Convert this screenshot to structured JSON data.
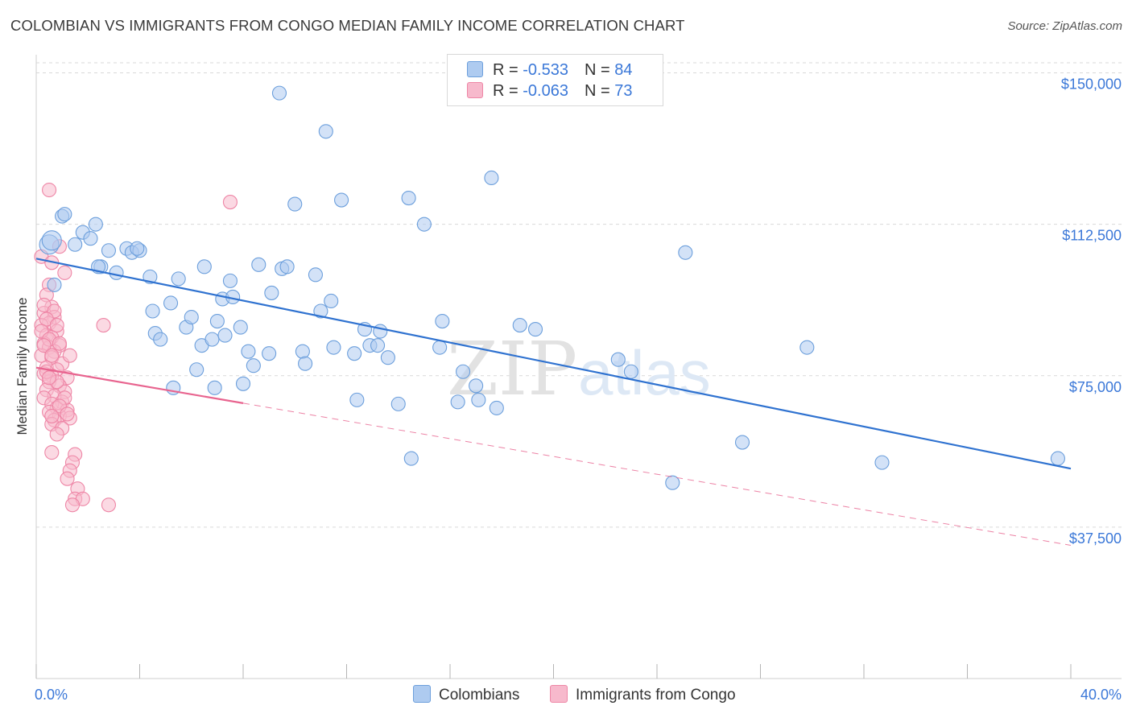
{
  "title": "COLOMBIAN VS IMMIGRANTS FROM CONGO MEDIAN FAMILY INCOME CORRELATION CHART",
  "source": "Source: ZipAtlas.com",
  "watermark": {
    "zip": "ZIP",
    "atlas": "atlas"
  },
  "legend": {
    "rows": [
      {
        "r_label": "R =",
        "r_value": "-0.533",
        "n_label": "N =",
        "n_value": "84"
      },
      {
        "r_label": "R =",
        "r_value": "-0.063",
        "n_label": "N =",
        "n_value": "73"
      }
    ]
  },
  "colors": {
    "blue_fill": "#aecbf0",
    "blue_stroke": "#6c9fdc",
    "blue_line": "#2f72d0",
    "pink_fill": "#f7b9cc",
    "pink_stroke": "#ee86a6",
    "pink_line": "#e8648f",
    "grid": "#d9d9d9",
    "axis_text": "#3b78d8"
  },
  "chart_data": {
    "type": "scatter",
    "xlabel": "",
    "ylabel": "Median Family Income",
    "xlim": [
      0,
      40
    ],
    "ylim": [
      0,
      152500
    ],
    "x_tick_labels": [
      "0.0%",
      "40.0%"
    ],
    "y_ticks": [
      {
        "value": 150000,
        "label": "$150,000"
      },
      {
        "value": 112500,
        "label": "$112,500"
      },
      {
        "value": 75000,
        "label": "$75,000"
      },
      {
        "value": 37500,
        "label": "$37,500"
      }
    ],
    "series": [
      {
        "name": "Colombians",
        "trend": {
          "x": [
            0,
            40
          ],
          "y": [
            104000,
            52000
          ],
          "dashed_from": null
        },
        "points": [
          [
            0.5,
            107500
          ],
          [
            0.6,
            108500
          ],
          [
            1.0,
            114500
          ],
          [
            1.1,
            115000
          ],
          [
            2.3,
            112500
          ],
          [
            1.5,
            107500
          ],
          [
            0.7,
            97500
          ],
          [
            1.8,
            110500
          ],
          [
            2.1,
            109000
          ],
          [
            2.8,
            106000
          ],
          [
            2.5,
            102000
          ],
          [
            3.1,
            100500
          ],
          [
            3.5,
            106500
          ],
          [
            3.7,
            105500
          ],
          [
            4.0,
            106000
          ],
          [
            4.4,
            99500
          ],
          [
            4.6,
            85500
          ],
          [
            4.8,
            84000
          ],
          [
            4.5,
            91000
          ],
          [
            5.2,
            93000
          ],
          [
            5.5,
            99000
          ],
          [
            5.3,
            72000
          ],
          [
            5.8,
            87000
          ],
          [
            6.0,
            89500
          ],
          [
            6.2,
            76500
          ],
          [
            6.4,
            82500
          ],
          [
            6.8,
            84000
          ],
          [
            7.0,
            88500
          ],
          [
            7.5,
            98500
          ],
          [
            7.9,
            87000
          ],
          [
            8.0,
            73000
          ],
          [
            8.2,
            81000
          ],
          [
            8.4,
            77500
          ],
          [
            7.2,
            94000
          ],
          [
            7.6,
            94500
          ],
          [
            9.0,
            80500
          ],
          [
            9.1,
            95500
          ],
          [
            9.5,
            101500
          ],
          [
            9.7,
            102000
          ],
          [
            9.4,
            145000
          ],
          [
            10.0,
            117500
          ],
          [
            10.3,
            81000
          ],
          [
            11.0,
            91000
          ],
          [
            11.4,
            93500
          ],
          [
            11.5,
            82000
          ],
          [
            11.8,
            118500
          ],
          [
            12.3,
            80500
          ],
          [
            12.4,
            69000
          ],
          [
            12.9,
            82500
          ],
          [
            13.3,
            86000
          ],
          [
            12.7,
            86500
          ],
          [
            13.2,
            82500
          ],
          [
            13.6,
            79500
          ],
          [
            14.0,
            68000
          ],
          [
            14.5,
            54500
          ],
          [
            14.4,
            119000
          ],
          [
            15.0,
            112500
          ],
          [
            15.7,
            88500
          ],
          [
            15.6,
            82000
          ],
          [
            16.3,
            68500
          ],
          [
            16.5,
            76000
          ],
          [
            17.0,
            72500
          ],
          [
            17.1,
            69000
          ],
          [
            17.8,
            67000
          ],
          [
            17.6,
            124000
          ],
          [
            18.7,
            87500
          ],
          [
            19.3,
            86500
          ],
          [
            22.5,
            79000
          ],
          [
            23.0,
            76000
          ],
          [
            24.6,
            48500
          ],
          [
            25.1,
            105500
          ],
          [
            27.3,
            58500
          ],
          [
            29.8,
            82000
          ],
          [
            32.7,
            53500
          ],
          [
            39.5,
            54500
          ],
          [
            11.2,
            135500
          ],
          [
            6.5,
            102000
          ],
          [
            8.6,
            102500
          ],
          [
            10.8,
            100000
          ],
          [
            10.4,
            78000
          ],
          [
            7.3,
            85000
          ],
          [
            6.9,
            72000
          ],
          [
            3.9,
            106500
          ],
          [
            2.4,
            102000
          ]
        ]
      },
      {
        "name": "Immigrants from Congo",
        "trend": {
          "x": [
            0,
            40
          ],
          "y": [
            77000,
            33000
          ],
          "dashed_from": 8
        },
        "points": [
          [
            0.2,
            104500
          ],
          [
            0.5,
            97500
          ],
          [
            0.4,
            95000
          ],
          [
            0.6,
            92000
          ],
          [
            0.3,
            90500
          ],
          [
            0.7,
            89500
          ],
          [
            0.5,
            88000
          ],
          [
            0.2,
            87500
          ],
          [
            0.8,
            86000
          ],
          [
            0.4,
            85000
          ],
          [
            0.6,
            84500
          ],
          [
            0.3,
            83000
          ],
          [
            0.9,
            82500
          ],
          [
            0.5,
            82000
          ],
          [
            0.7,
            81000
          ],
          [
            0.2,
            80000
          ],
          [
            0.6,
            79500
          ],
          [
            1.0,
            78000
          ],
          [
            0.4,
            77000
          ],
          [
            0.8,
            76500
          ],
          [
            0.3,
            75500
          ],
          [
            0.6,
            75000
          ],
          [
            1.2,
            74500
          ],
          [
            0.5,
            73500
          ],
          [
            0.9,
            72500
          ],
          [
            0.4,
            71500
          ],
          [
            1.1,
            71000
          ],
          [
            0.7,
            70000
          ],
          [
            0.3,
            69500
          ],
          [
            1.0,
            68500
          ],
          [
            0.6,
            68000
          ],
          [
            0.8,
            67000
          ],
          [
            1.2,
            66500
          ],
          [
            0.5,
            66000
          ],
          [
            0.9,
            65000
          ],
          [
            0.7,
            64000
          ],
          [
            1.3,
            64500
          ],
          [
            0.6,
            63000
          ],
          [
            1.0,
            62000
          ],
          [
            0.8,
            60500
          ],
          [
            1.5,
            55500
          ],
          [
            0.6,
            56000
          ],
          [
            1.4,
            53500
          ],
          [
            1.3,
            51500
          ],
          [
            1.2,
            49500
          ],
          [
            1.6,
            47000
          ],
          [
            1.5,
            44500
          ],
          [
            1.8,
            44500
          ],
          [
            2.8,
            43000
          ],
          [
            1.4,
            43000
          ],
          [
            0.5,
            121000
          ],
          [
            7.5,
            118000
          ],
          [
            2.6,
            87500
          ],
          [
            0.9,
            107000
          ],
          [
            0.6,
            103000
          ],
          [
            1.1,
            100500
          ],
          [
            0.3,
            92500
          ],
          [
            0.7,
            91000
          ],
          [
            0.4,
            89000
          ],
          [
            0.8,
            87500
          ],
          [
            0.2,
            86000
          ],
          [
            0.5,
            84000
          ],
          [
            0.9,
            83000
          ],
          [
            0.3,
            82500
          ],
          [
            0.6,
            80000
          ],
          [
            1.3,
            80000
          ],
          [
            0.4,
            76000
          ],
          [
            0.8,
            73500
          ],
          [
            0.5,
            74500
          ],
          [
            1.1,
            69500
          ],
          [
            0.9,
            67500
          ],
          [
            0.6,
            65000
          ],
          [
            1.2,
            65500
          ]
        ]
      }
    ]
  },
  "bottom_legend": [
    "Colombians",
    "Immigrants from Congo"
  ]
}
